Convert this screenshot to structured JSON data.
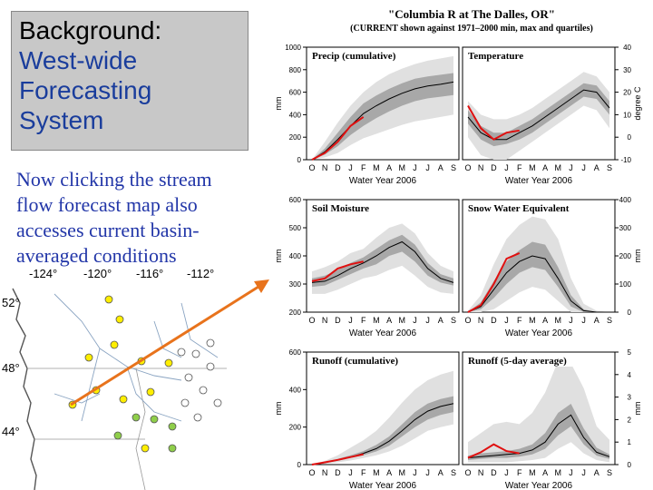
{
  "slide": {
    "title_line1": "Background:",
    "title_line2": "West-wide",
    "title_line3": "Forecasting",
    "title_line4": "System",
    "body_text": "Now clicking the stream flow forecast map also accesses current basin-averaged conditions"
  },
  "map": {
    "lon_labels": [
      "-124°",
      "-120°",
      "-116°",
      "-112°"
    ],
    "lat_labels": [
      "52°",
      "48°",
      "44°"
    ]
  },
  "figure": {
    "title": "\"Columbia R at The Dalles, OR\"",
    "subtitle": "(CURRENT shown against 1971–2000 min, max and quartiles)",
    "months": [
      "O",
      "N",
      "D",
      "J",
      "F",
      "M",
      "A",
      "M",
      "J",
      "J",
      "A",
      "S"
    ],
    "xlabel": "Water Year 2006"
  },
  "colors": {
    "current": "#e01010",
    "median": "#000000",
    "range": "#e0e0e0",
    "quartiles": "#a8a8a8",
    "arrow": "#e8731c",
    "title_text": "#1a3d9c",
    "body_text": "#2236a8"
  },
  "chart_data": [
    {
      "type": "area",
      "panel": "Precip (cumulative)",
      "axis_side": "left",
      "ylabel": "mm",
      "ylim": [
        0,
        1000
      ],
      "yticks": [
        "0",
        "200",
        "400",
        "600",
        "800",
        "1000"
      ],
      "x": [
        0,
        1,
        2,
        3,
        4,
        5,
        6,
        7,
        8,
        9,
        10,
        11
      ],
      "series": [
        {
          "name": "min",
          "values": [
            0,
            20,
            60,
            130,
            190,
            230,
            270,
            310,
            340,
            360,
            380,
            400
          ]
        },
        {
          "name": "q25",
          "values": [
            0,
            45,
            120,
            220,
            300,
            370,
            430,
            480,
            520,
            545,
            560,
            575
          ]
        },
        {
          "name": "median",
          "values": [
            0,
            70,
            180,
            300,
            410,
            480,
            540,
            590,
            630,
            655,
            670,
            690
          ]
        },
        {
          "name": "q75",
          "values": [
            0,
            100,
            240,
            380,
            500,
            570,
            630,
            680,
            720,
            740,
            755,
            770
          ]
        },
        {
          "name": "max",
          "values": [
            0,
            160,
            330,
            480,
            600,
            690,
            760,
            810,
            850,
            880,
            900,
            920
          ]
        },
        {
          "name": "current",
          "values": [
            0,
            60,
            160,
            300,
            380,
            null,
            null,
            null,
            null,
            null,
            null,
            null
          ]
        }
      ]
    },
    {
      "type": "area",
      "panel": "Temperature",
      "axis_side": "right",
      "ylabel": "degree C",
      "ylim": [
        -10,
        40
      ],
      "yticks": [
        "-10",
        "0",
        "10",
        "20",
        "30",
        "40"
      ],
      "x": [
        0,
        1,
        2,
        3,
        4,
        5,
        6,
        7,
        8,
        9,
        10,
        11
      ],
      "series": [
        {
          "name": "min",
          "values": [
            0,
            -8,
            -10,
            -10,
            -6,
            -2,
            2,
            6,
            10,
            14,
            12,
            4
          ]
        },
        {
          "name": "q25",
          "values": [
            6,
            -1,
            -4,
            -3,
            -1,
            2,
            6,
            10,
            14,
            18,
            17,
            10
          ]
        },
        {
          "name": "median",
          "values": [
            9,
            2,
            -1,
            -1,
            2,
            5,
            9,
            13,
            17,
            21,
            20,
            13
          ]
        },
        {
          "name": "q75",
          "values": [
            12,
            5,
            2,
            2,
            5,
            8,
            12,
            16,
            20,
            24,
            23,
            16
          ]
        },
        {
          "name": "max",
          "values": [
            16,
            10,
            8,
            8,
            10,
            13,
            17,
            21,
            25,
            29,
            27,
            20
          ]
        },
        {
          "name": "current",
          "values": [
            14,
            4,
            -1,
            2,
            3,
            null,
            null,
            null,
            null,
            null,
            null,
            null
          ]
        }
      ]
    },
    {
      "type": "area",
      "panel": "Soil Moisture",
      "axis_side": "left",
      "ylabel": "mm",
      "ylim": [
        200,
        600
      ],
      "yticks": [
        "200",
        "300",
        "400",
        "500",
        "600"
      ],
      "x": [
        0,
        1,
        2,
        3,
        4,
        5,
        6,
        7,
        8,
        9,
        10,
        11
      ],
      "series": [
        {
          "name": "min",
          "values": [
            265,
            265,
            280,
            300,
            320,
            330,
            350,
            365,
            330,
            290,
            270,
            265
          ]
        },
        {
          "name": "q25",
          "values": [
            290,
            295,
            315,
            335,
            355,
            370,
            400,
            415,
            380,
            330,
            305,
            295
          ]
        },
        {
          "name": "median",
          "values": [
            305,
            310,
            330,
            355,
            375,
            400,
            430,
            450,
            415,
            355,
            320,
            305
          ]
        },
        {
          "name": "q75",
          "values": [
            320,
            330,
            350,
            375,
            395,
            425,
            455,
            475,
            440,
            375,
            335,
            320
          ]
        },
        {
          "name": "max",
          "values": [
            345,
            360,
            380,
            410,
            425,
            465,
            500,
            515,
            480,
            410,
            365,
            345
          ]
        },
        {
          "name": "current",
          "values": [
            310,
            320,
            355,
            370,
            380,
            null,
            null,
            null,
            null,
            null,
            null,
            null
          ]
        }
      ]
    },
    {
      "type": "area",
      "panel": "Snow Water Equivalent",
      "axis_side": "right",
      "ylabel": "mm",
      "ylim": [
        0,
        400
      ],
      "yticks": [
        "0",
        "100",
        "200",
        "300",
        "400"
      ],
      "x": [
        0,
        1,
        2,
        3,
        4,
        5,
        6,
        7,
        8,
        9,
        10,
        11
      ],
      "series": [
        {
          "name": "min",
          "values": [
            0,
            0,
            10,
            40,
            70,
            90,
            80,
            40,
            0,
            0,
            0,
            0
          ]
        },
        {
          "name": "q25",
          "values": [
            0,
            10,
            50,
            100,
            140,
            160,
            150,
            90,
            20,
            0,
            0,
            0
          ]
        },
        {
          "name": "median",
          "values": [
            0,
            20,
            80,
            140,
            180,
            200,
            190,
            120,
            40,
            5,
            0,
            0
          ]
        },
        {
          "name": "q75",
          "values": [
            0,
            35,
            110,
            180,
            220,
            250,
            240,
            160,
            60,
            10,
            0,
            0
          ]
        },
        {
          "name": "max",
          "values": [
            5,
            60,
            170,
            260,
            310,
            340,
            330,
            260,
            120,
            30,
            5,
            0
          ]
        },
        {
          "name": "current",
          "values": [
            0,
            25,
            100,
            190,
            210,
            null,
            null,
            null,
            null,
            null,
            null,
            null
          ]
        }
      ]
    },
    {
      "type": "area",
      "panel": "Runoff (cumulative)",
      "axis_side": "left",
      "ylabel": "mm",
      "ylim": [
        0,
        600
      ],
      "yticks": [
        "0",
        "200",
        "400",
        "600"
      ],
      "x": [
        0,
        1,
        2,
        3,
        4,
        5,
        6,
        7,
        8,
        9,
        10,
        11
      ],
      "series": [
        {
          "name": "min",
          "values": [
            0,
            5,
            12,
            22,
            35,
            50,
            70,
            100,
            140,
            180,
            200,
            215
          ]
        },
        {
          "name": "q25",
          "values": [
            0,
            8,
            20,
            35,
            50,
            70,
            100,
            150,
            200,
            240,
            265,
            280
          ]
        },
        {
          "name": "median",
          "values": [
            0,
            10,
            25,
            40,
            60,
            85,
            125,
            180,
            240,
            285,
            310,
            325
          ]
        },
        {
          "name": "q75",
          "values": [
            0,
            12,
            30,
            50,
            72,
            105,
            150,
            215,
            280,
            325,
            350,
            365
          ]
        },
        {
          "name": "max",
          "values": [
            0,
            20,
            50,
            90,
            130,
            180,
            250,
            330,
            400,
            450,
            480,
            500
          ]
        },
        {
          "name": "current",
          "values": [
            0,
            12,
            25,
            40,
            55,
            null,
            null,
            null,
            null,
            null,
            null,
            null
          ]
        }
      ]
    },
    {
      "type": "area",
      "panel": "Runoff (5-day average)",
      "axis_side": "right",
      "ylabel": "mm",
      "ylim": [
        0,
        5
      ],
      "yticks": [
        "0",
        "1",
        "2",
        "3",
        "4",
        "5"
      ],
      "x": [
        0,
        1,
        2,
        3,
        4,
        5,
        6,
        7,
        8,
        9,
        10,
        11
      ],
      "series": [
        {
          "name": "min",
          "values": [
            0.1,
            0.1,
            0.1,
            0.1,
            0.15,
            0.2,
            0.3,
            0.7,
            1.0,
            0.5,
            0.2,
            0.1
          ]
        },
        {
          "name": "q25",
          "values": [
            0.2,
            0.25,
            0.3,
            0.3,
            0.35,
            0.45,
            0.7,
            1.3,
            1.7,
            0.9,
            0.4,
            0.25
          ]
        },
        {
          "name": "median",
          "values": [
            0.3,
            0.35,
            0.4,
            0.45,
            0.5,
            0.65,
            1.0,
            1.8,
            2.2,
            1.2,
            0.55,
            0.35
          ]
        },
        {
          "name": "q75",
          "values": [
            0.4,
            0.5,
            0.55,
            0.6,
            0.7,
            0.9,
            1.4,
            2.3,
            2.7,
            1.6,
            0.75,
            0.45
          ]
        },
        {
          "name": "max",
          "values": [
            1.0,
            1.4,
            1.8,
            1.9,
            1.8,
            2.3,
            3.2,
            4.6,
            4.5,
            3.4,
            1.7,
            1.1
          ]
        },
        {
          "name": "current",
          "values": [
            0.3,
            0.55,
            0.9,
            0.6,
            0.5,
            null,
            null,
            null,
            null,
            null,
            null,
            null
          ]
        }
      ]
    }
  ]
}
